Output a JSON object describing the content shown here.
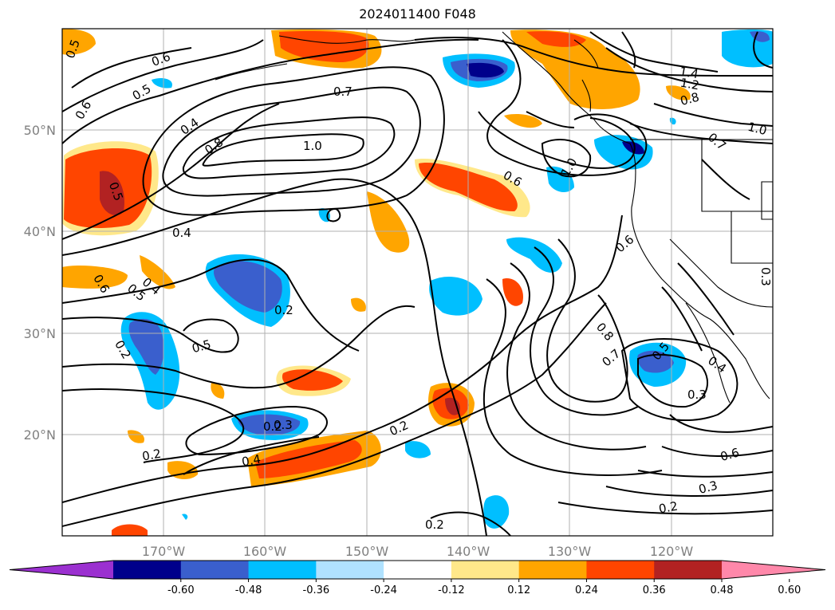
{
  "title": "2024011400 F048",
  "colors": {
    "ocean": "#ffffff",
    "grid": "#b0b0b0",
    "contour": "#000000",
    "coast": "#000000"
  },
  "lon_labels": [
    "170°W",
    "160°W",
    "150°W",
    "140°W",
    "130°W",
    "120°W"
  ],
  "lat_labels": [
    "50°N",
    "40°N",
    "30°N",
    "20°N"
  ],
  "colorbar": {
    "ticks": [
      "-0.60",
      "-0.48",
      "-0.36",
      "-0.24",
      "-0.12",
      "0.12",
      "0.24",
      "0.36",
      "0.48",
      "0.60"
    ],
    "colors": [
      "#9b30d0",
      "#00008b",
      "#3a5fcd",
      "#00bfff",
      "#b0e2ff",
      "#ffffff",
      "#ffe88a",
      "#ffa500",
      "#ff4500",
      "#b22222",
      "#ff88aa"
    ],
    "extend": "both"
  },
  "contour_labels": [
    "0.5",
    "0.6",
    "0.5",
    "0.6",
    "0.4",
    "0.8",
    "1.0",
    "0.7",
    "0.5",
    "0.4",
    "0.6",
    "0.5",
    "0.4",
    "0.2",
    "0.5",
    "0.2",
    "0.3",
    "0.2",
    "0.4",
    "0.2",
    "0.2",
    "1.0",
    "0.6",
    "0.6",
    "1.4",
    "1.2",
    "0.8",
    "1.0",
    "0.7",
    "0.8",
    "0.7",
    "0.5",
    "0.4",
    "0.3",
    "0.6",
    "0.3",
    "0.2",
    "0.3",
    "0.2"
  ]
}
